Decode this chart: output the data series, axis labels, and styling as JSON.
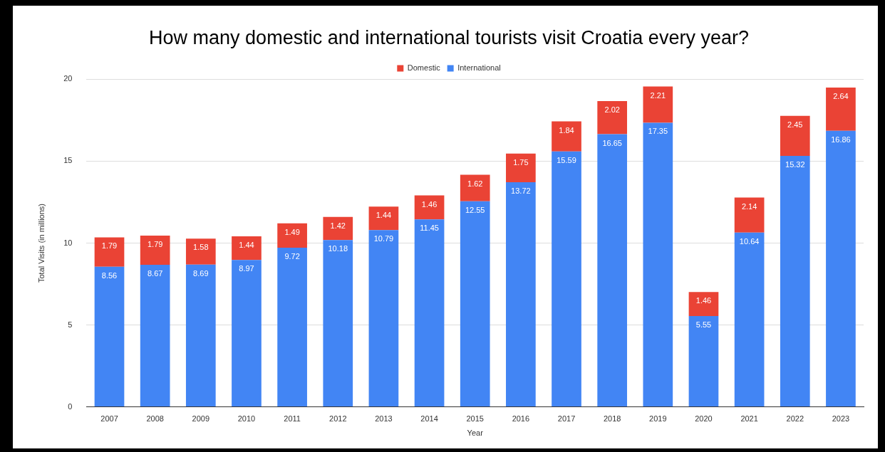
{
  "chart_data": {
    "type": "bar",
    "title": "How many domestic and international tourists visit Croatia every year?",
    "xlabel": "Year",
    "ylabel": "Total Visits (in millions)",
    "categories": [
      "2007",
      "2008",
      "2009",
      "2010",
      "2011",
      "2012",
      "2013",
      "2014",
      "2015",
      "2016",
      "2017",
      "2018",
      "2019",
      "2020",
      "2021",
      "2022",
      "2023"
    ],
    "series": [
      {
        "name": "International",
        "color": "#4285f4",
        "values": [
          8.56,
          8.67,
          8.69,
          8.97,
          9.72,
          10.18,
          10.79,
          11.45,
          12.55,
          13.72,
          15.59,
          16.65,
          17.35,
          5.55,
          10.64,
          15.32,
          16.86
        ]
      },
      {
        "name": "Domestic",
        "color": "#ea4335",
        "values": [
          1.79,
          1.79,
          1.58,
          1.44,
          1.49,
          1.42,
          1.44,
          1.46,
          1.62,
          1.75,
          1.84,
          2.02,
          2.21,
          1.46,
          2.14,
          2.45,
          2.64
        ]
      }
    ],
    "stacked": true,
    "data_labels": true,
    "ylim": [
      0,
      20
    ],
    "yticks": [
      0,
      5,
      10,
      15,
      20
    ],
    "grid": "y",
    "legend": "top"
  }
}
